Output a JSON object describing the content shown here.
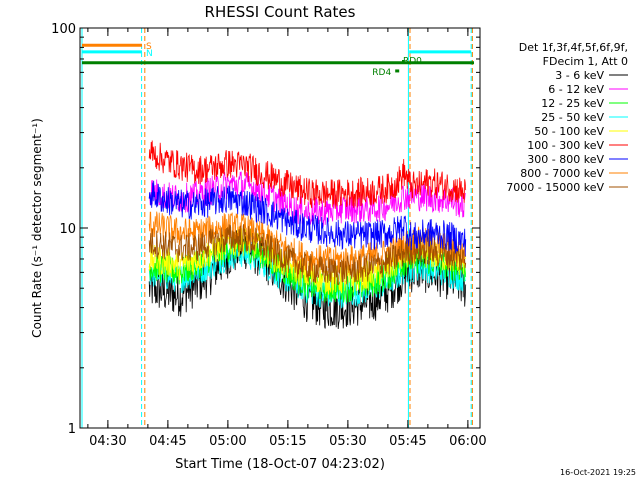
{
  "chart_data": {
    "type": "line",
    "title": "RHESSI Count Rates",
    "xlabel": "Start Time (18-Oct-07 04:23:02)",
    "ylabel": "Count Rate (s⁻¹ detector segment⁻¹)",
    "y_scale": "log",
    "ylim": [
      1,
      100
    ],
    "y_ticks": [
      "1",
      "10",
      "100"
    ],
    "xlim_minutes": [
      0,
      100
    ],
    "x_ticks": [
      {
        "label": "04:30",
        "minute": 6.97
      },
      {
        "label": "04:45",
        "minute": 21.97
      },
      {
        "label": "05:00",
        "minute": 36.97
      },
      {
        "label": "05:15",
        "minute": 51.97
      },
      {
        "label": "05:30",
        "minute": 66.97
      },
      {
        "label": "05:45",
        "minute": 81.97
      },
      {
        "label": "06:00",
        "minute": 96.97
      }
    ],
    "legend": {
      "placement": "right",
      "header": [
        "Det 1f,3f,4f,5f,6f,9f,",
        "FDecim 1, Att 0"
      ]
    },
    "series": [
      {
        "name": "3 - 6 keV",
        "color": "#000000",
        "x": [
          17.3,
          21,
          25,
          29,
          33,
          37,
          41,
          45,
          49,
          53,
          57,
          61,
          65,
          69,
          73,
          77,
          79.5,
          81,
          84,
          87,
          90,
          93,
          96.5
        ],
        "y": [
          5.0,
          4.8,
          4.6,
          5.2,
          6.0,
          7.2,
          8.0,
          7.2,
          6.0,
          5.0,
          4.3,
          4.0,
          4.0,
          4.1,
          4.3,
          4.8,
          5.4,
          5.8,
          6.2,
          6.0,
          5.8,
          5.5,
          5.0
        ]
      },
      {
        "name": "6 - 12 keV",
        "color": "#ff00ff",
        "x": [
          17.3,
          21,
          25,
          29,
          33,
          37,
          41,
          45,
          49,
          53,
          57,
          61,
          65,
          69,
          73,
          77,
          79.5,
          81,
          84,
          87,
          90,
          93,
          96.5
        ],
        "y": [
          15.5,
          14.5,
          14.0,
          14.5,
          15.5,
          16.5,
          16.5,
          15.5,
          14.0,
          12.5,
          12.0,
          12.0,
          12.5,
          12.5,
          12.5,
          13.0,
          14.0,
          14.5,
          14.5,
          14.2,
          14.0,
          13.8,
          12.8
        ]
      },
      {
        "name": "12 - 25 keV",
        "color": "#00ff00",
        "x": [
          17.3,
          21,
          25,
          29,
          33,
          37,
          41,
          45,
          49,
          53,
          57,
          61,
          65,
          69,
          73,
          77,
          79.5,
          81,
          84,
          87,
          90,
          93,
          96.5
        ],
        "y": [
          6.5,
          6.2,
          6.0,
          6.5,
          7.2,
          8.0,
          8.2,
          7.5,
          6.5,
          5.8,
          5.2,
          5.0,
          5.0,
          5.1,
          5.3,
          5.8,
          6.3,
          6.8,
          7.0,
          6.9,
          6.7,
          6.5,
          6.2
        ]
      },
      {
        "name": "25 - 50 keV",
        "color": "#00ffff",
        "x": [
          17.3,
          21,
          25,
          29,
          33,
          37,
          41,
          45,
          49,
          53,
          57,
          61,
          65,
          69,
          73,
          77,
          79.5,
          81,
          84,
          87,
          90,
          93,
          96.5
        ],
        "y": [
          6.0,
          5.8,
          5.6,
          6.0,
          6.6,
          7.3,
          7.5,
          6.9,
          6.0,
          5.4,
          4.9,
          4.7,
          4.7,
          4.8,
          5.0,
          5.4,
          5.8,
          6.2,
          6.4,
          6.3,
          6.1,
          5.9,
          5.6
        ]
      },
      {
        "name": "50 - 100 keV",
        "color": "#ffff00",
        "x": [
          17.3,
          21,
          25,
          29,
          33,
          37,
          41,
          45,
          49,
          53,
          57,
          61,
          65,
          69,
          73,
          77,
          79.5,
          81,
          84,
          87,
          90,
          93,
          96.5
        ],
        "y": [
          7.0,
          6.8,
          6.5,
          7.0,
          7.6,
          8.4,
          8.6,
          8.0,
          7.0,
          6.3,
          5.8,
          5.5,
          5.5,
          5.6,
          5.8,
          6.3,
          6.8,
          7.3,
          7.5,
          7.4,
          7.2,
          7.0,
          6.7
        ]
      },
      {
        "name": "100 - 300 keV",
        "color": "#ff0000",
        "x": [
          17.3,
          21,
          25,
          29,
          33,
          37,
          41,
          45,
          49,
          53,
          57,
          61,
          65,
          69,
          73,
          77,
          79.5,
          81,
          82.5,
          84,
          87,
          90,
          93,
          96.5
        ],
        "y": [
          24.0,
          22.0,
          20.5,
          19.5,
          20.0,
          21.0,
          20.5,
          19.0,
          17.5,
          16.0,
          15.0,
          14.8,
          14.8,
          15.0,
          15.2,
          15.8,
          17.0,
          19.0,
          16.5,
          16.0,
          17.0,
          16.5,
          16.0,
          15.0
        ]
      },
      {
        "name": "300 - 800 keV",
        "color": "#0000ff",
        "x": [
          17.3,
          21,
          25,
          29,
          33,
          37,
          41,
          45,
          49,
          53,
          57,
          61,
          65,
          69,
          73,
          77,
          79.5,
          81,
          82.5,
          84,
          87,
          90,
          93,
          96.5
        ],
        "y": [
          15.0,
          13.8,
          13.2,
          13.0,
          13.5,
          14.0,
          13.5,
          12.5,
          11.5,
          10.5,
          10.0,
          9.6,
          9.3,
          9.2,
          9.2,
          9.4,
          9.8,
          10.5,
          9.2,
          9.0,
          9.5,
          9.3,
          9.0,
          8.5
        ]
      },
      {
        "name": "800 - 7000 keV",
        "color": "#ff8000",
        "x": [
          17.3,
          21,
          25,
          29,
          33,
          37,
          41,
          45,
          49,
          53,
          57,
          61,
          65,
          69,
          73,
          77,
          79.5,
          81,
          84,
          87,
          90,
          93,
          96.5
        ],
        "y": [
          10.5,
          10.0,
          9.5,
          9.5,
          9.8,
          10.2,
          10.0,
          9.2,
          8.3,
          7.6,
          7.1,
          6.9,
          6.9,
          7.0,
          7.2,
          7.5,
          7.9,
          8.3,
          8.6,
          8.4,
          8.2,
          7.9,
          7.5
        ]
      },
      {
        "name": "7000 - 15000 keV",
        "color": "#a05000",
        "x": [
          17.3,
          21,
          25,
          29,
          33,
          37,
          41,
          45,
          49,
          53,
          57,
          61,
          65,
          69,
          73,
          77,
          79.5,
          81,
          84,
          87,
          90,
          93,
          96.5
        ],
        "y": [
          8.5,
          8.2,
          7.9,
          8.0,
          8.4,
          8.9,
          8.9,
          8.3,
          7.5,
          6.8,
          6.3,
          6.1,
          6.1,
          6.2,
          6.4,
          6.8,
          7.2,
          7.6,
          7.8,
          7.7,
          7.5,
          7.3,
          6.9
        ]
      }
    ],
    "flag_bars": [
      {
        "label": "S",
        "color": "#ff8000",
        "y": 82,
        "x_start": 0.5,
        "x_end": 15.5
      },
      {
        "label": "N",
        "color": "#00ffff",
        "y": 76,
        "x_start": 0.5,
        "x_end": 15.5
      },
      {
        "label": "",
        "color": "#00ffff",
        "y": 76,
        "x_start": 82.3,
        "x_end": 97.8
      },
      {
        "label": "",
        "color": "#008000",
        "y": 67,
        "x_start": 0.5,
        "x_end": 98.5
      },
      {
        "label": "RD4",
        "color": "#008000",
        "y": 61,
        "x_start": 78.8,
        "x_end": 79.8
      },
      {
        "label": "RD0",
        "color": "#008000",
        "y": 68,
        "x_start": 80.5,
        "x_end": 81.0
      }
    ],
    "vertical_markers": [
      {
        "minute": 0.5,
        "color": "#00ffff",
        "style": "solid"
      },
      {
        "minute": 15.4,
        "color": "#00ffff",
        "style": "dashed"
      },
      {
        "minute": 16.2,
        "color": "#ff8000",
        "style": "dashed"
      },
      {
        "minute": 82.1,
        "color": "#00ffff",
        "style": "solid"
      },
      {
        "minute": 82.5,
        "color": "#ff8000",
        "style": "dashed"
      },
      {
        "minute": 97.8,
        "color": "#00ffff",
        "style": "dashed"
      },
      {
        "minute": 98.1,
        "color": "#ff8000",
        "style": "dashed"
      }
    ]
  },
  "footer_timestamp": "16-Oct-2021 19:25"
}
